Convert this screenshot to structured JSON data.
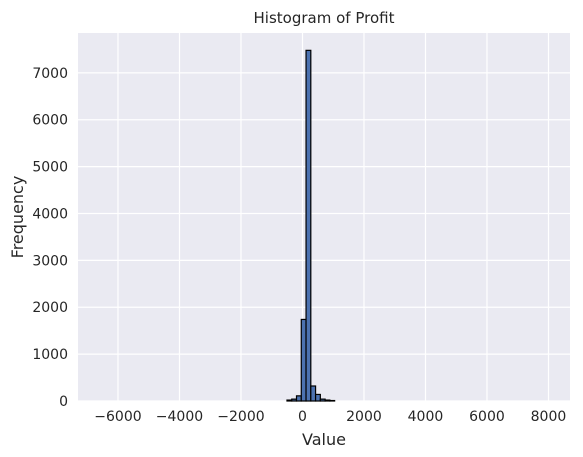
{
  "chart_data": {
    "type": "bar",
    "title": "Histogram of Profit",
    "xlabel": "Value",
    "ylabel": "Frequency",
    "xlim": [
      -7300,
      8700
    ],
    "ylim": [
      0,
      7850
    ],
    "xticks": [
      -6000,
      -4000,
      -2000,
      0,
      2000,
      4000,
      6000,
      8000
    ],
    "yticks": [
      0,
      1000,
      2000,
      3000,
      4000,
      5000,
      6000,
      7000
    ],
    "grid": true,
    "bin_width": 155,
    "bins": [
      {
        "x0": -504,
        "x1": -349,
        "count": 20
      },
      {
        "x0": -349,
        "x1": -194,
        "count": 40
      },
      {
        "x0": -194,
        "x1": -39,
        "count": 110
      },
      {
        "x0": -39,
        "x1": 116,
        "count": 1740
      },
      {
        "x0": 116,
        "x1": 271,
        "count": 7480
      },
      {
        "x0": 271,
        "x1": 426,
        "count": 320
      },
      {
        "x0": 426,
        "x1": 581,
        "count": 140
      },
      {
        "x0": 581,
        "x1": 736,
        "count": 40
      },
      {
        "x0": 736,
        "x1": 891,
        "count": 20
      },
      {
        "x0": 891,
        "x1": 1046,
        "count": 10
      }
    ],
    "colors": {
      "bar_fill": "#4c72b0",
      "bar_edge": "#000000",
      "plot_bg": "#eaeaf2",
      "grid": "#ffffff"
    }
  }
}
